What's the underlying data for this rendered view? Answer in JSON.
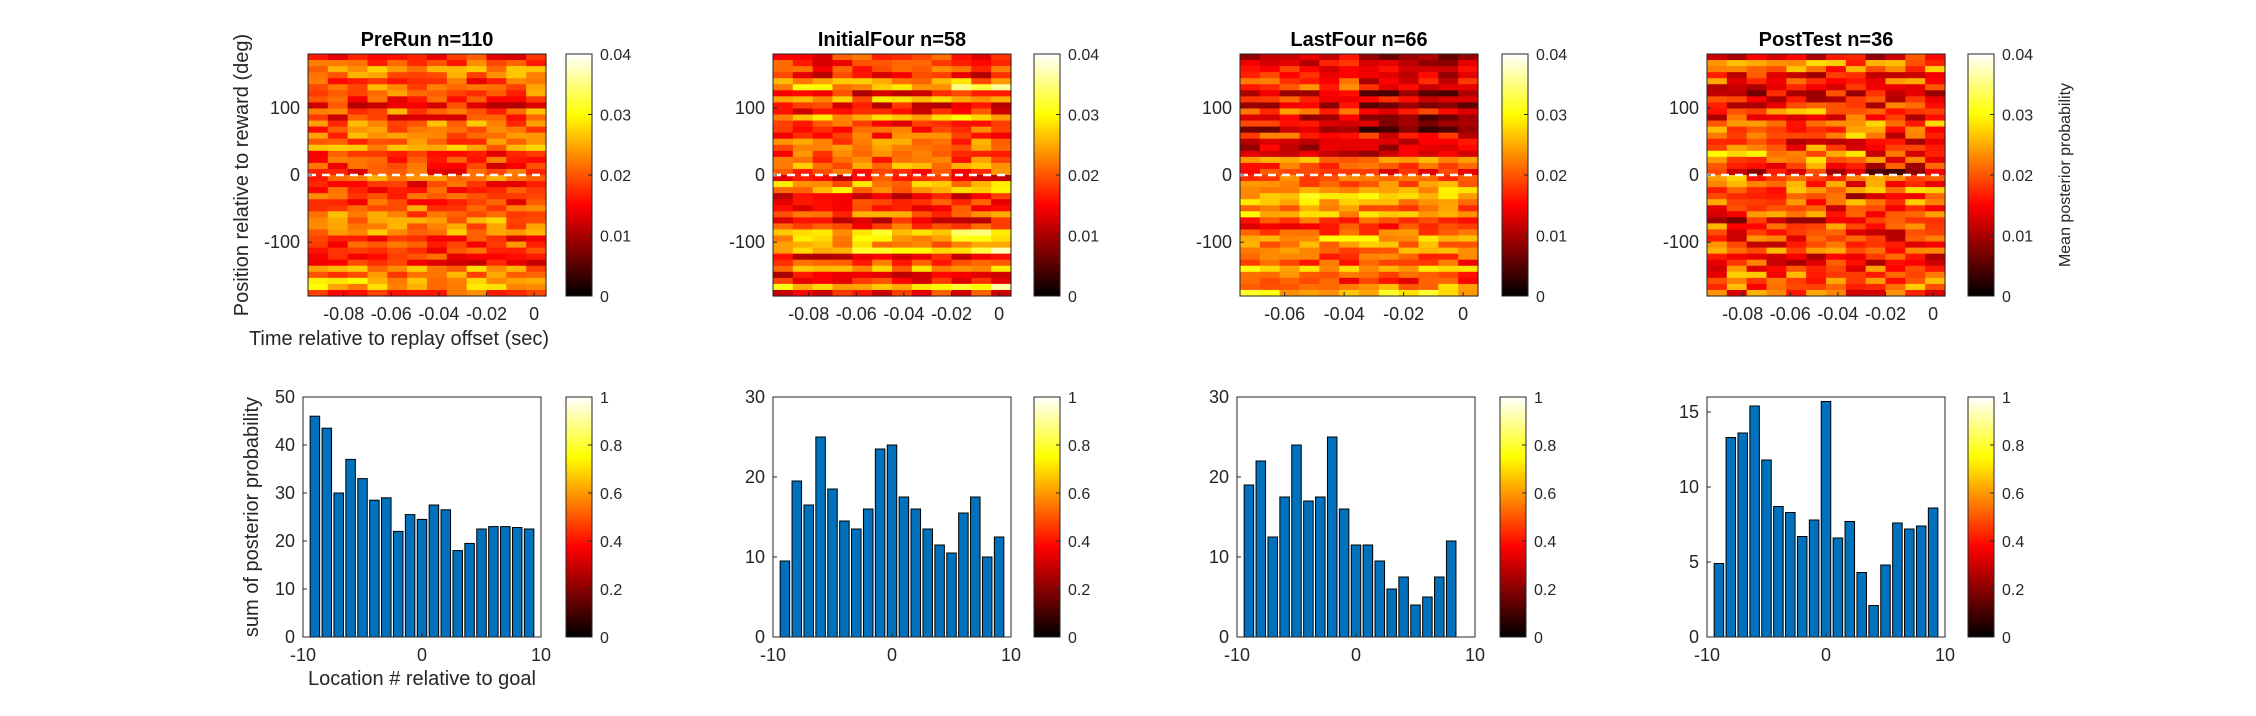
{
  "heatmaps": [
    {
      "title": "PreRun n=110",
      "ylabel": "Position relative to reward (deg)",
      "xlabel": "Time relative to replay offset (sec)",
      "xlim": [
        -0.095,
        0.005
      ],
      "ylim": [
        -180,
        180
      ],
      "xticks": [
        -0.08,
        -0.06,
        -0.04,
        -0.02,
        0
      ],
      "xtick_labels": [
        "-0.08",
        "-0.06",
        "-0.04",
        "-0.02",
        "0"
      ],
      "yticks": [
        100,
        0,
        -100
      ],
      "ytick_labels": [
        "100",
        "0",
        "-100"
      ],
      "dashed_line_y": 0,
      "colorbar": {
        "ticks": [
          "0",
          "0.01",
          "0.02",
          "0.03",
          "0.04"
        ],
        "label": ""
      },
      "seed": 3,
      "profile": "even"
    },
    {
      "title": "InitialFour n=58",
      "ylabel": "",
      "xlabel": "",
      "xlim": [
        -0.095,
        0.005
      ],
      "ylim": [
        -180,
        180
      ],
      "xticks": [
        -0.08,
        -0.06,
        -0.04,
        -0.02,
        0
      ],
      "xtick_labels": [
        "-0.08",
        "-0.06",
        "-0.04",
        "-0.02",
        "0"
      ],
      "yticks": [
        100,
        0,
        -100
      ],
      "ytick_labels": [
        "100",
        "0",
        "-100"
      ],
      "dashed_line_y": 0,
      "colorbar": {
        "ticks": [
          "0",
          "0.01",
          "0.02",
          "0.03",
          "0.04"
        ],
        "label": ""
      },
      "seed": 11,
      "profile": "stripes"
    },
    {
      "title": "LastFour n=66",
      "ylabel": "",
      "xlabel": "",
      "xlim": [
        -0.075,
        0.005
      ],
      "ylim": [
        -180,
        180
      ],
      "xticks": [
        -0.06,
        -0.04,
        -0.02,
        0
      ],
      "xtick_labels": [
        "-0.06",
        "-0.04",
        "-0.02",
        "0"
      ],
      "yticks": [
        100,
        0,
        -100
      ],
      "ytick_labels": [
        "100",
        "0",
        "-100"
      ],
      "dashed_line_y": 0,
      "colorbar": {
        "ticks": [
          "0",
          "0.01",
          "0.02",
          "0.03",
          "0.04"
        ],
        "label": ""
      },
      "seed": 23,
      "profile": "darktop"
    },
    {
      "title": "PostTest n=36",
      "ylabel": "",
      "xlabel": "",
      "xlim": [
        -0.095,
        0.005
      ],
      "ylim": [
        -180,
        180
      ],
      "xticks": [
        -0.08,
        -0.06,
        -0.04,
        -0.02,
        0
      ],
      "xtick_labels": [
        "-0.08",
        "-0.06",
        "-0.04",
        "-0.02",
        "0"
      ],
      "yticks": [
        100,
        0,
        -100
      ],
      "ytick_labels": [
        "100",
        "0",
        "-100"
      ],
      "dashed_line_y": 0,
      "colorbar": {
        "ticks": [
          "0",
          "0.01",
          "0.02",
          "0.03",
          "0.04"
        ],
        "label": "Mean posterior probability"
      },
      "seed": 41,
      "profile": "noisy"
    }
  ],
  "chart_data": [
    {
      "type": "bar",
      "title": "",
      "xlabel": "Location # relative to goal",
      "ylabel": "sum of posterior probability",
      "x": [
        -9,
        -8,
        -7,
        -6,
        -5,
        -4,
        -3,
        -2,
        -1,
        0,
        1,
        2,
        3,
        4,
        5,
        6,
        7,
        8,
        9
      ],
      "values": [
        46,
        43.5,
        30,
        37,
        33,
        28.5,
        29,
        22,
        25.5,
        24.5,
        27.5,
        26.5,
        18,
        19.5,
        22.5,
        23,
        23,
        22.8,
        22.5
      ],
      "xlim": [
        -10,
        10
      ],
      "ylim": [
        0,
        50
      ],
      "yticks": [
        0,
        10,
        20,
        30,
        40,
        50
      ],
      "xticks": [
        -10,
        0,
        10
      ],
      "bar_color": "#0072BD",
      "colorbar": {
        "ticks": [
          "0",
          "0.2",
          "0.4",
          "0.6",
          "0.8",
          "1"
        ]
      }
    },
    {
      "type": "bar",
      "title": "",
      "xlabel": "",
      "ylabel": "",
      "x": [
        -9,
        -8,
        -7,
        -6,
        -5,
        -4,
        -3,
        -2,
        -1,
        0,
        1,
        2,
        3,
        4,
        5,
        6,
        7,
        8,
        9
      ],
      "values": [
        9.5,
        19.5,
        16.5,
        25,
        18.5,
        14.5,
        13.5,
        16,
        23.5,
        24,
        17.5,
        16,
        13.5,
        11.5,
        10.5,
        15.5,
        17.5,
        10,
        12.5
      ],
      "xlim": [
        -10,
        10
      ],
      "ylim": [
        0,
        30
      ],
      "yticks": [
        0,
        10,
        20,
        30
      ],
      "xticks": [
        -10,
        0,
        10
      ],
      "bar_color": "#0072BD",
      "colorbar": {
        "ticks": [
          "0",
          "0.2",
          "0.4",
          "0.6",
          "0.8",
          "1"
        ]
      }
    },
    {
      "type": "bar",
      "title": "",
      "xlabel": "",
      "ylabel": "",
      "x": [
        -9,
        -8,
        -7,
        -6,
        -5,
        -4,
        -3,
        -2,
        -1,
        0,
        1,
        2,
        3,
        4,
        5,
        6,
        7,
        8,
        9
      ],
      "values": [
        19,
        22,
        12.5,
        17.5,
        24,
        17,
        17.5,
        25,
        16,
        11.5,
        11.5,
        9.5,
        6,
        7.5,
        4,
        5,
        7.5,
        12,
        0
      ],
      "xlim": [
        -10,
        10
      ],
      "ylim": [
        0,
        30
      ],
      "yticks": [
        0,
        10,
        20,
        30
      ],
      "xticks": [
        -10,
        0,
        10
      ],
      "bar_color": "#0072BD",
      "colorbar": {
        "ticks": [
          "0",
          "0.2",
          "0.4",
          "0.6",
          "0.8",
          "1"
        ]
      }
    },
    {
      "type": "bar",
      "title": "",
      "xlabel": "",
      "ylabel": "",
      "x": [
        -9,
        -8,
        -7,
        -6,
        -5,
        -4,
        -3,
        -2,
        -1,
        0,
        1,
        2,
        3,
        4,
        5,
        6,
        7,
        8,
        9
      ],
      "values": [
        4.9,
        13.3,
        13.6,
        15.4,
        11.8,
        8.7,
        8.3,
        6.7,
        7.8,
        15.7,
        6.6,
        7.7,
        4.3,
        2.1,
        4.8,
        7.6,
        7.2,
        7.4,
        8.6
      ],
      "xlim": [
        -10,
        10
      ],
      "ylim": [
        0,
        16
      ],
      "yticks": [
        0,
        5,
        10,
        15
      ],
      "xticks": [
        -10,
        0,
        10
      ],
      "bar_color": "#0072BD",
      "colorbar": {
        "ticks": [
          "0",
          "0.2",
          "0.4",
          "0.6",
          "0.8",
          "1"
        ]
      }
    }
  ]
}
